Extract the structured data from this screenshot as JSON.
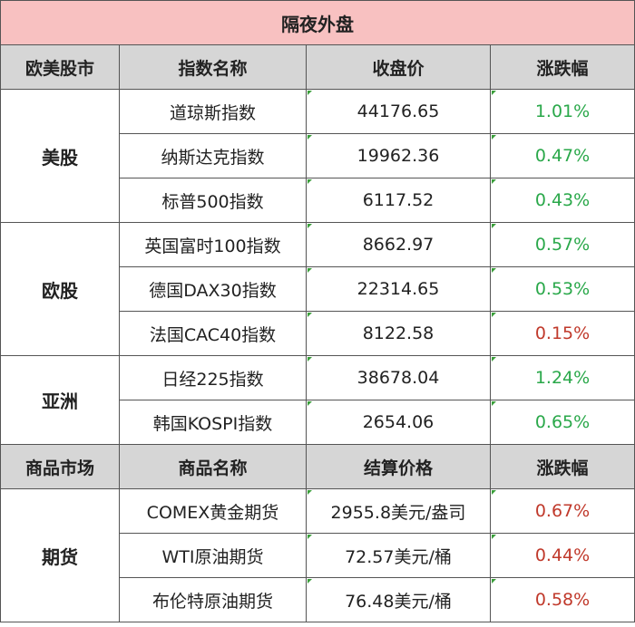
{
  "title": "隔夜外盘",
  "index_header": [
    "欧美股市",
    "指数名称",
    "收盘价",
    "涨跌幅"
  ],
  "groups": [
    {
      "name": "美股",
      "rows": [
        {
          "name": "道琼斯指数",
          "close": "44176.65",
          "change": "1.01%",
          "dir": "up"
        },
        {
          "name": "纳斯达克指数",
          "close": "19962.36",
          "change": "0.47%",
          "dir": "up"
        },
        {
          "name": "标普500指数",
          "close": "6117.52",
          "change": "0.43%",
          "dir": "up"
        }
      ]
    },
    {
      "name": "欧股",
      "rows": [
        {
          "name": "英国富时100指数",
          "close": "8662.97",
          "change": "0.57%",
          "dir": "up"
        },
        {
          "name": "德国DAX30指数",
          "close": "22314.65",
          "change": "0.53%",
          "dir": "up"
        },
        {
          "name": "法国CAC40指数",
          "close": "8122.58",
          "change": "0.15%",
          "dir": "down"
        }
      ]
    },
    {
      "name": "亚洲",
      "rows": [
        {
          "name": "日经225指数",
          "close": "38678.04",
          "change": "1.24%",
          "dir": "up"
        },
        {
          "name": "韩国KOSPI指数",
          "close": "2654.06",
          "change": "0.65%",
          "dir": "up"
        }
      ]
    }
  ],
  "commodity_header": [
    "商品市场",
    "商品名称",
    "结算价格",
    "涨跌幅"
  ],
  "commodities": {
    "name": "期货",
    "rows": [
      {
        "name": "COMEX黄金期货",
        "close": "2955.8美元/盎司",
        "change": "0.67%",
        "dir": "down"
      },
      {
        "name": "WTI原油期货",
        "close": "72.57美元/桶",
        "change": "0.44%",
        "dir": "down"
      },
      {
        "name": "布伦特原油期货",
        "close": "76.48美元/桶",
        "change": "0.58%",
        "dir": "down"
      }
    ]
  },
  "colors": {
    "up": "#2aa84a",
    "down": "#c0392b",
    "title_bg": "#f8c1c1",
    "header_bg": "#d6d6d6"
  }
}
